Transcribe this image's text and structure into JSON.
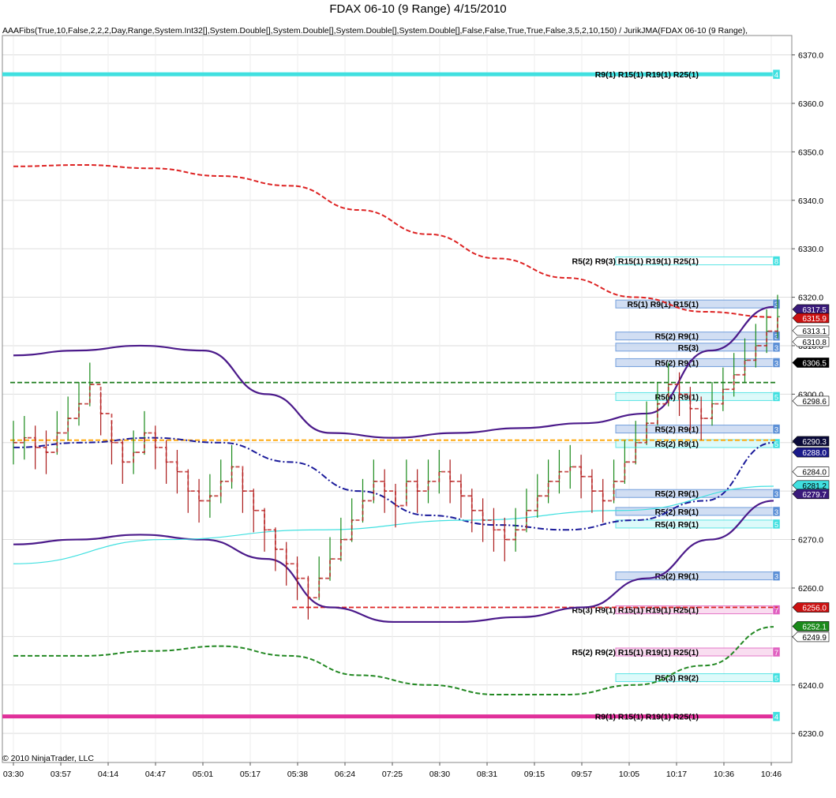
{
  "title": "FDAX 06-10 (9 Range)  4/15/2010",
  "subtitle": "AAAFibs(True,10,False,2,2,2,Day,Range,System.Int32[],System.Double[],System.Double[],System.Double[],System.Double[],False,False,True,True,False,3,5,2,10,150) / JurikJMA(FDAX 06-10 (9 Range),",
  "copyright": "© 2010 NinjaTrader, LLC",
  "chart_data": {
    "type": "line",
    "ylim": [
      6224,
      6374
    ],
    "y_ticks": [
      6230.0,
      6240.0,
      6250.0,
      6260.0,
      6270.0,
      6280.0,
      6290.0,
      6300.0,
      6310.0,
      6320.0,
      6330.0,
      6340.0,
      6350.0,
      6360.0,
      6370.0
    ],
    "x_ticks": [
      "03:30",
      "03:57",
      "04:14",
      "04:47",
      "05:01",
      "05:17",
      "05:38",
      "06:24",
      "07:25",
      "08:30",
      "08:31",
      "09:15",
      "09:57",
      "10:05",
      "10:17",
      "10:36",
      "10:46"
    ],
    "grid": true,
    "price_bars": [
      6290,
      6291,
      6289,
      6288,
      6292,
      6295,
      6298,
      6302,
      6296,
      6290,
      6286,
      6288,
      6292,
      6289,
      6286,
      6284,
      6280,
      6278,
      6279,
      6282,
      6285,
      6280,
      6276,
      6272,
      6268,
      6265,
      6262,
      6258,
      6262,
      6266,
      6270,
      6274,
      6278,
      6282,
      6280,
      6277,
      6282,
      6280,
      6282,
      6284,
      6282,
      6279,
      6276,
      6274,
      6272,
      6270,
      6272,
      6276,
      6279,
      6282,
      6284,
      6285,
      6283,
      6280,
      6278,
      6282,
      6286,
      6290,
      6294,
      6298,
      6302,
      6300,
      6297,
      6295,
      6298,
      6301,
      6304,
      6307,
      6310,
      6313,
      6316
    ],
    "series": [
      {
        "values": [
          6347,
          6347.3,
          6346.6,
          6345,
          6343,
          6338,
          6333,
          6328,
          6324,
          6320,
          6317,
          6315.9
        ]
      },
      {
        "values": [
          6308,
          6309,
          6310,
          6309,
          6300,
          6292,
          6291,
          6292,
          6293,
          6294,
          6296,
          6309,
          6318
        ]
      },
      {
        "values": [
          6289,
          6290,
          6291,
          6290,
          6286,
          6280,
          6275,
          6273,
          6272,
          6274,
          6278,
          6290
        ]
      },
      {
        "values": [
          6269,
          6270,
          6271,
          6270,
          6266,
          6256,
          6253,
          6253,
          6254,
          6256,
          6262,
          6270,
          6278
        ]
      },
      {
        "values": [
          6246,
          6246,
          6247,
          6248,
          6246,
          6242,
          6240,
          6238,
          6238,
          6240,
          6244,
          6252
        ]
      },
      {
        "values": [
          6265,
          6270,
          6272,
          6274,
          6276,
          6281
        ]
      }
    ],
    "fib_lines": [
      {
        "price": 6366,
        "label": "R9(1) R15(1) R19(1) R25(1)",
        "count": "4"
      },
      {
        "price": 6327.5,
        "label": "R5(2) R9(3) R15(1) R19(1) R25(1)",
        "count": "8"
      },
      {
        "price": 6318.6,
        "label": "R5(1) R9(1) R15(1)",
        "count": "3"
      },
      {
        "price": 6312,
        "label": "R5(2) R9(1)",
        "count": "3"
      },
      {
        "price": 6309.7,
        "label": "R5(3)",
        "count": "3"
      },
      {
        "price": 6306.5,
        "label": "R5(2) R9(1)",
        "count": "3"
      },
      {
        "price": 6299.5,
        "label": "R5(4) R9(1)",
        "count": "5"
      },
      {
        "price": 6292.8,
        "label": "R5(2) R9(1)",
        "count": "3"
      },
      {
        "price": 6289.8,
        "label": "R5(2) R9(1)",
        "count": "5"
      },
      {
        "price": 6279.5,
        "label": "R5(2) R9(1)",
        "count": "3"
      },
      {
        "price": 6275.8,
        "label": "R5(2) R9(1)",
        "count": "3"
      },
      {
        "price": 6273.2,
        "label": "R5(4) R9(1)",
        "count": "5"
      },
      {
        "price": 6262.5,
        "label": "R5(2) R9(1)",
        "count": "3"
      },
      {
        "price": 6255.5,
        "label": "R5(3) R9(1) R15(1) R19(1) R25(1)",
        "count": "7"
      },
      {
        "price": 6246.8,
        "label": "R5(2) R9(2) R15(1) R19(1) R25(1)",
        "count": "7"
      },
      {
        "price": 6241.5,
        "label": "R5(3) R9(2)",
        "count": "5"
      },
      {
        "price": 6233.5,
        "label": "R9(1) R15(1) R19(1) R25(1)",
        "count": "4"
      }
    ],
    "price_labels": [
      {
        "value": "6317.5",
        "bg": "#3a1a7a",
        "fg": "#ffffff"
      },
      {
        "value": "6315.9",
        "bg": "#cc1111",
        "fg": "#ffffff"
      },
      {
        "value": "6313.1",
        "bg": "#ffffff",
        "fg": "#000000"
      },
      {
        "value": "6310.8",
        "bg": "#ffffff",
        "fg": "#000000"
      },
      {
        "value": "6306.5",
        "bg": "#000000",
        "fg": "#ffffff"
      },
      {
        "value": "6298.6",
        "bg": "#ffffff",
        "fg": "#000000"
      },
      {
        "value": "6290.3",
        "bg": "#0a0a3a",
        "fg": "#ffffff"
      },
      {
        "value": "6288.0",
        "bg": "#1a1a8a",
        "fg": "#ffffff"
      },
      {
        "value": "6284.0",
        "bg": "#ffffff",
        "fg": "#000000"
      },
      {
        "value": "6281.2",
        "bg": "#40e0e0",
        "fg": "#000000"
      },
      {
        "value": "6279.7",
        "bg": "#3a1a7a",
        "fg": "#ffffff"
      },
      {
        "value": "6256.0",
        "bg": "#cc1111",
        "fg": "#ffffff"
      },
      {
        "value": "6252.1",
        "bg": "#1a8a1a",
        "fg": "#ffffff"
      },
      {
        "value": "6249.9",
        "bg": "#ffffff",
        "fg": "#000000"
      }
    ],
    "colors": {
      "upper_band": "#dd2222",
      "jma_outer": "#4b1a8a",
      "jma_mid": "#1a1a9a",
      "lower_band": "#228822",
      "stepline_green": "#1a7a1a",
      "stepline_red": "#dd2222",
      "cyan_line": "#40e0e0",
      "orange_line": "#ffa500",
      "magenta_line": "#e0309a"
    }
  }
}
